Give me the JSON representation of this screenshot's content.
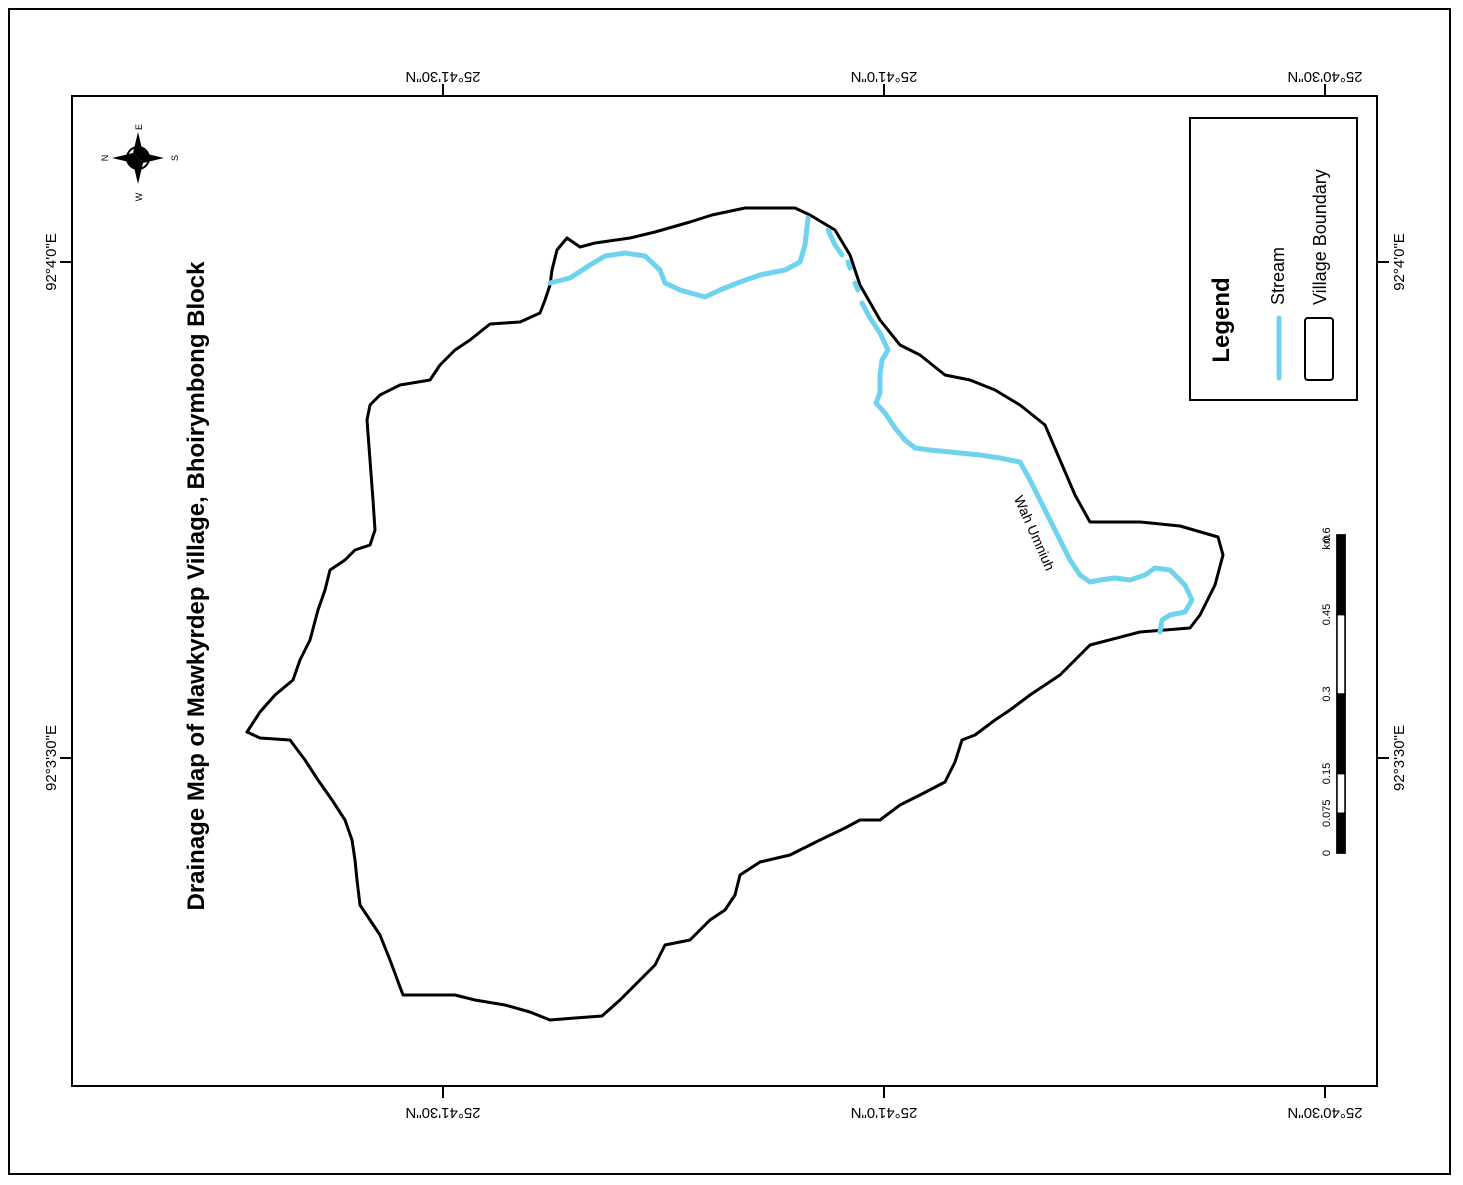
{
  "map": {
    "title": "Drainage Map of Mawkyrdep Village, Bhoirymbong Block",
    "stream_name": "Wah Umniuh"
  },
  "colors": {
    "stream": "#6fd3ee",
    "boundary": "#000000",
    "background": "#ffffff"
  },
  "graticule": {
    "latitudes": [
      "25°41'30\"N",
      "25°41'0\"N",
      "25°40'30\"N"
    ],
    "longitudes": [
      "92°4'0\"E",
      "92°3'30\"E"
    ]
  },
  "compass": {
    "icon": "north-arrow-icon",
    "n": "N",
    "e": "E",
    "s": "S",
    "w": "W"
  },
  "legend": {
    "title": "Legend",
    "items": [
      {
        "label": "Stream",
        "icon": "stream-line-icon"
      },
      {
        "label": "Village Boundary",
        "icon": "polygon-outline-icon"
      }
    ]
  },
  "scale_bar": {
    "ticks": [
      "0",
      "0.075",
      "0.15",
      "0.3",
      "0.45",
      "0.6"
    ],
    "unit": "km"
  }
}
